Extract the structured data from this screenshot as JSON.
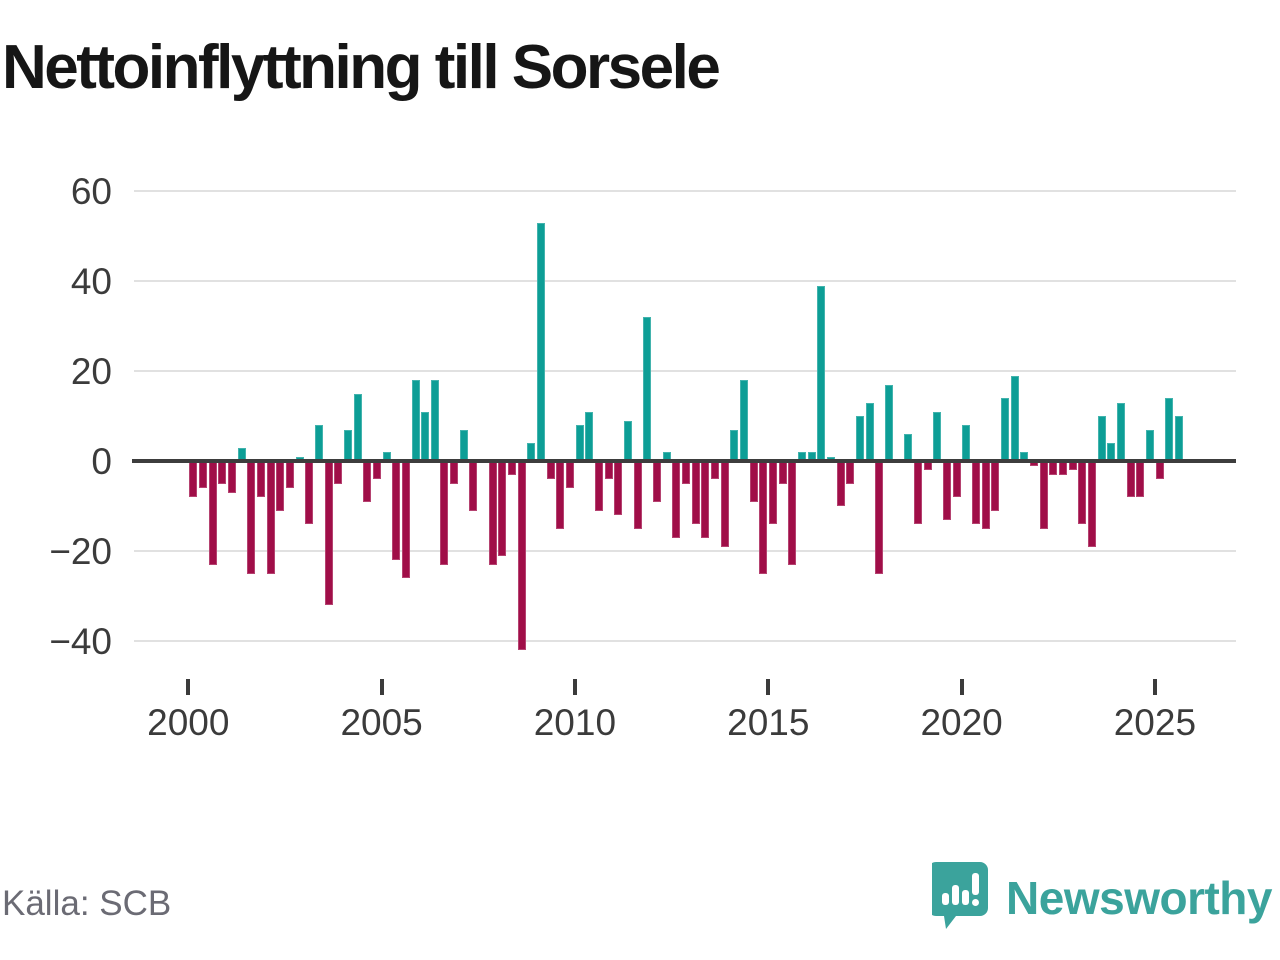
{
  "title": "Nettoinflyttning till Sorsele",
  "source": "Källa: SCB",
  "branding": {
    "logo_text": "Newsworthy",
    "logo_icon": "newsworthy-speech-bubble-chart-icon"
  },
  "colors": {
    "positive_bar": "#0D9E96",
    "negative_bar": "#A00E48",
    "title_text": "#161616",
    "axis_text": "#3b3b3b",
    "gridline": "#e1e1e1",
    "zero_line": "#3d3d3d",
    "source_text": "#6b6b74",
    "brand_teal": "#3BA39C"
  },
  "chart_data": {
    "type": "bar",
    "title": "Nettoinflyttning till Sorsele",
    "x_unit": "quarter",
    "start_year": 2000,
    "start_quarter": 1,
    "end_year": 2025,
    "end_quarter": 3,
    "ylim": [
      -50,
      66
    ],
    "yticks": [
      60,
      40,
      20,
      0,
      -20,
      -40
    ],
    "xticks": [
      2000,
      2005,
      2010,
      2015,
      2020,
      2025
    ],
    "grid": "horizontal",
    "legend": "none",
    "series_name": "Nettoinflyttning",
    "values_by_year": {
      "2000": [
        -8,
        -6,
        -23,
        -5
      ],
      "2001": [
        -7,
        3,
        -25,
        -8
      ],
      "2002": [
        -25,
        -11,
        -6,
        1
      ],
      "2003": [
        -14,
        8,
        -32,
        -5
      ],
      "2004": [
        7,
        15,
        -9,
        -4
      ],
      "2005": [
        2,
        -22,
        -26,
        18
      ],
      "2006": [
        11,
        18,
        -23,
        -5
      ],
      "2007": [
        7,
        -11,
        0,
        -23
      ],
      "2008": [
        -21,
        -3,
        -42,
        4
      ],
      "2009": [
        53,
        -4,
        -15,
        -6
      ],
      "2010": [
        8,
        11,
        -11,
        -4
      ],
      "2011": [
        -12,
        9,
        -15,
        32
      ],
      "2012": [
        -9,
        2,
        -17,
        -5
      ],
      "2013": [
        -14,
        -17,
        -4,
        -19
      ],
      "2014": [
        7,
        18,
        -9,
        -25
      ],
      "2015": [
        -14,
        -5,
        -23,
        2
      ],
      "2016": [
        2,
        39,
        1,
        -10
      ],
      "2017": [
        -5,
        10,
        13,
        -25
      ],
      "2018": [
        17,
        0,
        6,
        -14
      ],
      "2019": [
        -2,
        11,
        -13,
        -8
      ],
      "2020": [
        8,
        -14,
        -15,
        -11
      ],
      "2021": [
        14,
        19,
        2,
        -1
      ],
      "2022": [
        -15,
        -3,
        -3,
        -2
      ],
      "2023": [
        -14,
        -19,
        10,
        4
      ],
      "2024": [
        13,
        -8,
        -8,
        7
      ],
      "2025": [
        -4,
        14,
        10
      ]
    }
  }
}
